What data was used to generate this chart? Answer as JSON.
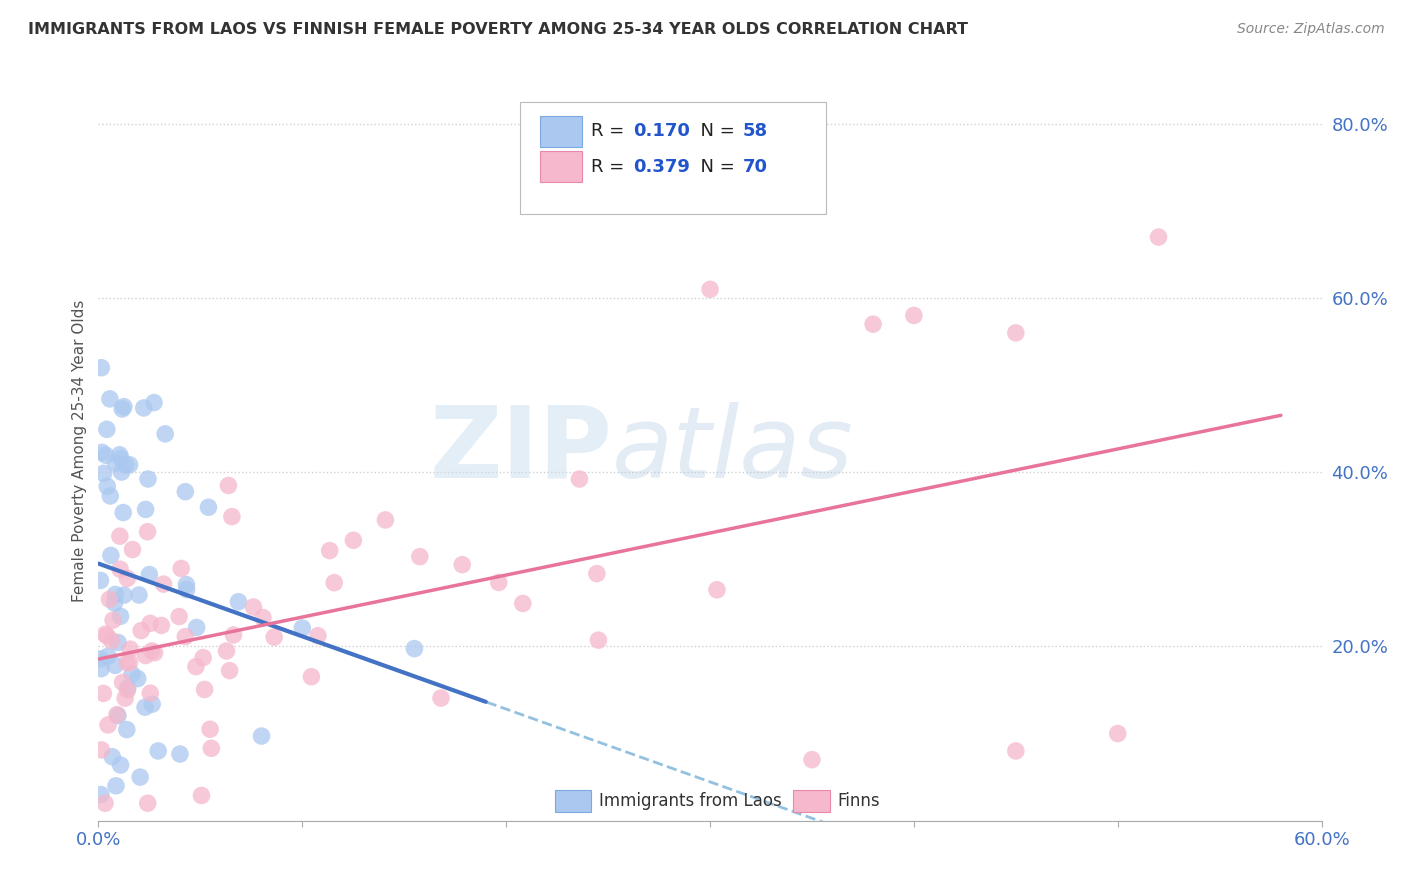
{
  "title": "IMMIGRANTS FROM LAOS VS FINNISH FEMALE POVERTY AMONG 25-34 YEAR OLDS CORRELATION CHART",
  "source": "Source: ZipAtlas.com",
  "ylabel": "Female Poverty Among 25-34 Year Olds",
  "R_blue": 0.17,
  "N_blue": 58,
  "R_pink": 0.379,
  "N_pink": 70,
  "legend1_color": "#aac8f0",
  "legend2_color": "#f5b8cc",
  "blue_line_color": "#4472c4",
  "pink_line_color": "#e8749a",
  "dashed_line_color": "#88bbdd",
  "watermark_zip": "ZIP",
  "watermark_atlas": "atlas",
  "xlim": [
    0.0,
    0.6
  ],
  "ylim": [
    0.0,
    0.85
  ],
  "x_ticks": [
    0.0,
    0.1,
    0.2,
    0.3,
    0.4,
    0.5,
    0.6
  ],
  "y_ticks": [
    0.0,
    0.2,
    0.4,
    0.6,
    0.8
  ],
  "background_color": "#ffffff",
  "grid_color": "#cccccc",
  "tick_color": "#4472c4",
  "title_color": "#333333",
  "source_color": "#888888"
}
